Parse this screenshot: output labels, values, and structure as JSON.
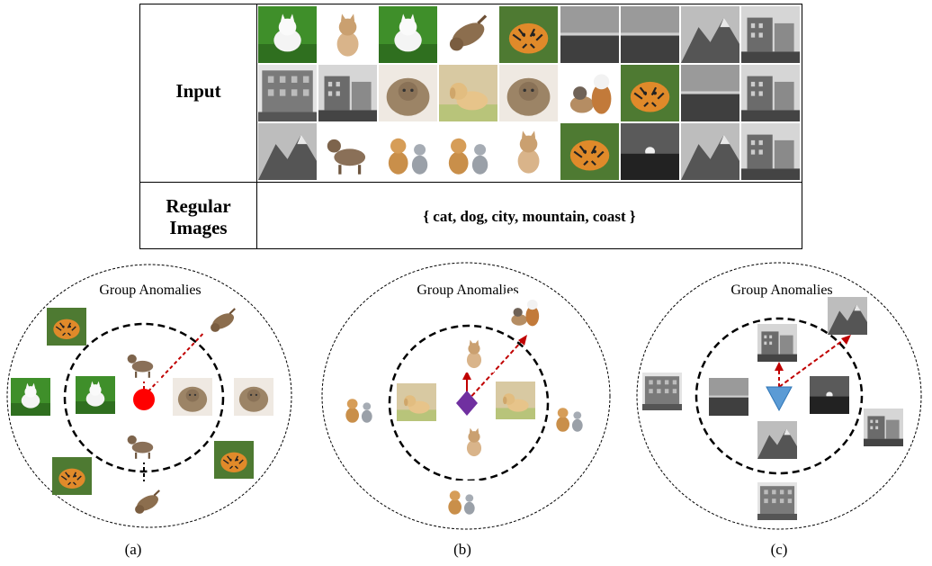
{
  "table": {
    "input_label": "Input",
    "regular_label": "Regular Images",
    "regular_value": "{ cat, dog, city, mountain, coast }",
    "thumbnails": [
      "cat-white-grass",
      "cat-kitten",
      "cat-white-grass",
      "cat-tabby-rolling",
      "tiger",
      "coast-gray",
      "coast-gray",
      "mountain-gray",
      "city-street",
      "city-building",
      "city-street",
      "cat-longhair",
      "dog-golden",
      "cat-longhair",
      "cat-and-dog",
      "tiger",
      "coast-gray",
      "city-street",
      "mountain-gray",
      "cat-tabby",
      "dog-and-cat",
      "dog-and-cat",
      "cat-kitten",
      "tiger",
      "coast-sunset",
      "mountain-gray",
      "city-street"
    ]
  },
  "panels": [
    {
      "title": "Group Anomalies",
      "caption": "(a)",
      "center_shape": "circle",
      "center_color": "#ff0000"
    },
    {
      "title": "Group Anomalies",
      "caption": "(b)",
      "center_shape": "diamond",
      "center_color": "#7030a0"
    },
    {
      "title": "Group Anomalies",
      "caption": "(c)",
      "center_shape": "triangle",
      "center_color": "#5b9bd5"
    }
  ],
  "colors": {
    "arrow": "#c00000",
    "line": "#000000"
  }
}
